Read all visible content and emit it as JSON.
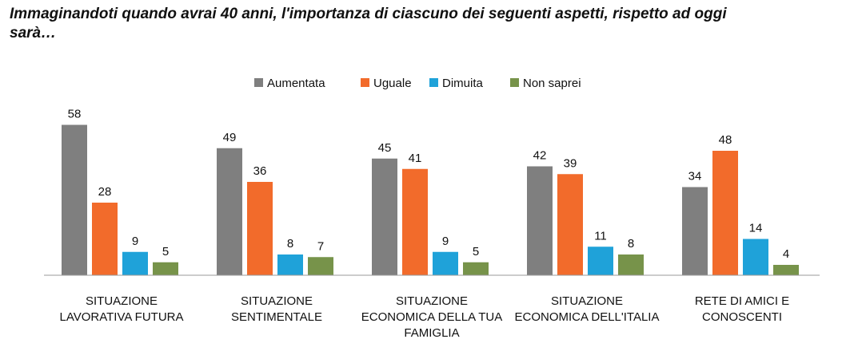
{
  "chart_data": {
    "type": "bar",
    "title": "Immaginandoti quando avrai 40 anni, l'importanza di ciascuno dei seguenti aspetti, rispetto ad oggi sarà…",
    "categories": [
      [
        "SITUAZIONE",
        "LAVORATIVA FUTURA"
      ],
      [
        "SITUAZIONE",
        "SENTIMENTALE"
      ],
      [
        "SITUAZIONE",
        "ECONOMICA DELLA TUA",
        "FAMIGLIA"
      ],
      [
        "SITUAZIONE",
        "ECONOMICA DELL'ITALIA"
      ],
      [
        "RETE DI AMICI E",
        "CONOSCENTI"
      ]
    ],
    "series": [
      {
        "name": "Aumentata",
        "color": "#7f7f7f",
        "values": [
          58,
          49,
          45,
          42,
          34
        ]
      },
      {
        "name": "Uguale",
        "color": "#f26b2b",
        "values": [
          28,
          36,
          41,
          39,
          48
        ]
      },
      {
        "name": "Dimuita",
        "color": "#1fa2d9",
        "values": [
          9,
          8,
          9,
          11,
          14
        ]
      },
      {
        "name": "Non saprei",
        "color": "#77934a",
        "values": [
          5,
          7,
          5,
          8,
          4
        ]
      }
    ],
    "ylim": [
      0,
      65
    ],
    "grid": false,
    "legend_position": "top-center",
    "data_labels": true
  }
}
